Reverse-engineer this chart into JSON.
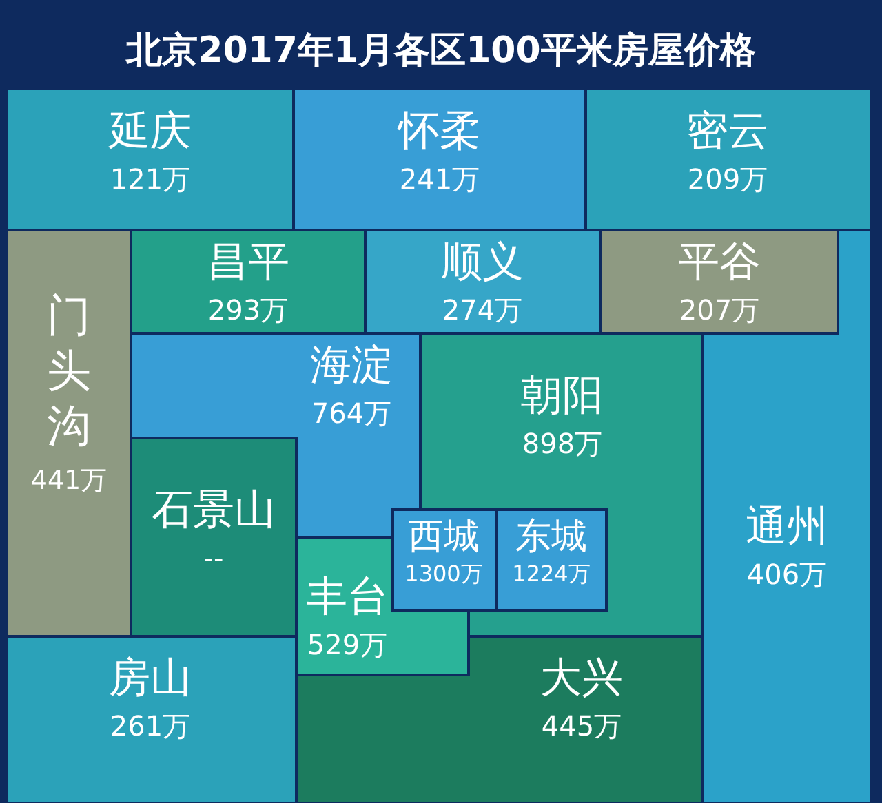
{
  "chart_data": {
    "type": "other",
    "title": "北京2017年1月各区100平米房屋价格",
    "categories": [
      "延庆",
      "怀柔",
      "密云",
      "门头沟",
      "昌平",
      "顺义",
      "平谷",
      "通州",
      "海淀",
      "朝阳",
      "石景山",
      "大兴",
      "房山",
      "丰台",
      "西城",
      "东城"
    ],
    "values": [
      121,
      241,
      209,
      441,
      293,
      274,
      207,
      406,
      764,
      898,
      null,
      445,
      261,
      529,
      1300,
      1224
    ],
    "value_labels": [
      "121万",
      "241万",
      "209万",
      "441万",
      "293万",
      "274万",
      "207万",
      "406万",
      "764万",
      "898万",
      "--",
      "445万",
      "261万",
      "529万",
      "1300万",
      "1224万"
    ],
    "colors": [
      "#2ba2b9",
      "#389ed6",
      "#2ba2b9",
      "#8e9a82",
      "#23a08a",
      "#36a6c8",
      "#8e9a82",
      "#2ba2c9",
      "#389ed6",
      "#25a08e",
      "#1d8c78",
      "#1c7c5e",
      "#2ba2b9",
      "#2bb49a",
      "#389ed6",
      "#389ed6"
    ]
  }
}
